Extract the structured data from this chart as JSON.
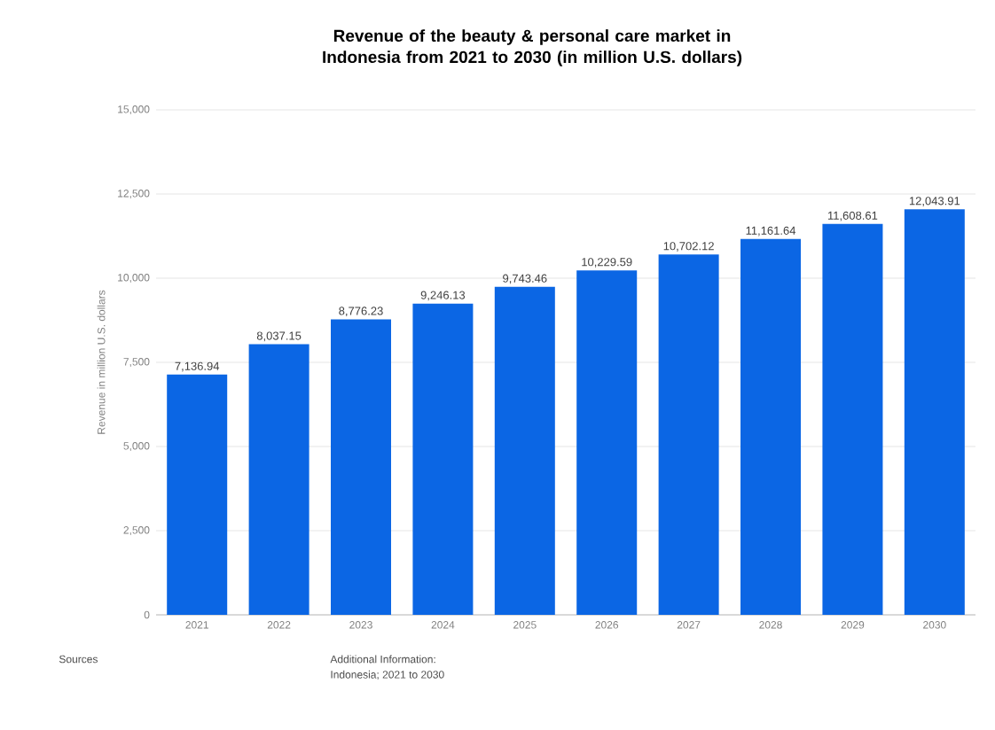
{
  "chart_data": {
    "type": "bar",
    "title": "Revenue of the beauty & personal care market in Indonesia from 2021 to 2030 (in million U.S. dollars)",
    "ylabel": "Revenue in million U.S. dollars",
    "categories": [
      "2021",
      "2022",
      "2023",
      "2024",
      "2025",
      "2026",
      "2027",
      "2028",
      "2029",
      "2030"
    ],
    "values": [
      7136.94,
      8037.15,
      8776.23,
      9246.13,
      9743.46,
      10229.59,
      10702.12,
      11161.64,
      11608.61,
      12043.91
    ],
    "value_labels": [
      "7,136.94",
      "8,037.15",
      "8,776.23",
      "9,246.13",
      "9,743.46",
      "10,229.59",
      "10,702.12",
      "11,161.64",
      "11,608.61",
      "12,043.91"
    ],
    "color": "#0b66e4",
    "ylim": [
      0,
      15000
    ],
    "yticks": [
      0,
      {
        "value": 2500,
        "label": "2,500"
      },
      {
        "value": 5000,
        "label": "5,000"
      },
      {
        "value": 7500,
        "label": "7,500"
      },
      {
        "value": 10000,
        "label": "10,000"
      },
      {
        "value": 12500,
        "label": "12,500"
      },
      {
        "value": 15000,
        "label": "15,000"
      }
    ],
    "grid": "y",
    "annotations": [
      "Sources",
      "Additional Information:",
      "Indonesia; 2021 to 2030"
    ]
  }
}
